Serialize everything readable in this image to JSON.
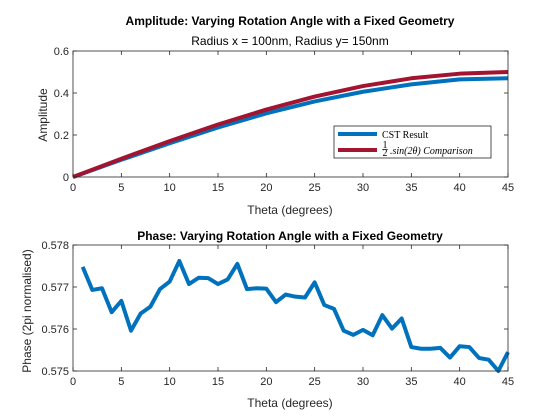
{
  "chart_data": [
    {
      "type": "line",
      "title": "Amplitude: Varying Rotation Angle with a Fixed Geometry",
      "subtitle": "Radius x = 100nm, Radius y= 150nm",
      "xlabel": "Theta (degrees)",
      "ylabel": "Amplitude",
      "xlim": [
        0,
        45
      ],
      "ylim": [
        0,
        0.6
      ],
      "xticks": [
        0,
        5,
        10,
        15,
        20,
        25,
        30,
        35,
        40,
        45
      ],
      "xtick_labels": [
        "0",
        "5",
        "10",
        "15",
        "20",
        "25",
        "30",
        "35",
        "40",
        "45"
      ],
      "yticks": [
        0,
        0.2,
        0.4,
        0.6
      ],
      "ytick_labels": [
        "0",
        "0.2",
        "0.4",
        "0.6"
      ],
      "grid": false,
      "legend_position": "right",
      "series": [
        {
          "name": "CST Result",
          "color": "#0072BD",
          "x": [
            0,
            5,
            10,
            15,
            20,
            25,
            30,
            35,
            40,
            45
          ],
          "y": [
            0,
            0.082,
            0.161,
            0.236,
            0.303,
            0.36,
            0.406,
            0.441,
            0.465,
            0.47
          ]
        },
        {
          "name": "½·sin(2θ) Comparison",
          "legend_parts": {
            "frac_num": "1",
            "frac_den": "2",
            "expr": ".sin(2θ) Comparison"
          },
          "color": "#A2142F",
          "x": [
            0,
            5,
            10,
            15,
            20,
            25,
            30,
            35,
            40,
            45
          ],
          "y": [
            0,
            0.087,
            0.171,
            0.25,
            0.321,
            0.383,
            0.433,
            0.47,
            0.492,
            0.5
          ]
        }
      ]
    },
    {
      "type": "line",
      "title": "Phase: Varying Rotation Angle with a Fixed Geometry",
      "xlabel": "Theta (degrees)",
      "ylabel": "Phase (2pi normalised)",
      "xlim": [
        0,
        45
      ],
      "ylim": [
        0.575,
        0.578
      ],
      "xticks": [
        0,
        5,
        10,
        15,
        20,
        25,
        30,
        35,
        40,
        45
      ],
      "xtick_labels": [
        "0",
        "5",
        "10",
        "15",
        "20",
        "25",
        "30",
        "35",
        "40",
        "45"
      ],
      "yticks": [
        0.575,
        0.576,
        0.577,
        0.578
      ],
      "ytick_labels": [
        "0.575",
        "0.576",
        "0.577",
        "0.578"
      ],
      "grid": false,
      "series": [
        {
          "color": "#0072BD",
          "x": [
            1,
            2,
            3,
            4,
            5,
            6,
            7,
            8,
            9,
            10,
            11,
            12,
            13,
            14,
            15,
            16,
            17,
            18,
            19,
            20,
            21,
            22,
            23,
            24,
            25,
            26,
            27,
            28,
            29,
            30,
            31,
            32,
            33,
            34,
            35,
            36,
            37,
            38,
            39,
            40,
            41,
            42,
            43,
            44,
            45
          ],
          "y": [
            0.57748,
            0.57693,
            0.57697,
            0.5764,
            0.57667,
            0.57596,
            0.57637,
            0.57653,
            0.57695,
            0.57713,
            0.57762,
            0.57707,
            0.57722,
            0.57721,
            0.57707,
            0.57718,
            0.57755,
            0.57695,
            0.57697,
            0.57696,
            0.57664,
            0.57682,
            0.57677,
            0.57675,
            0.57711,
            0.57657,
            0.57648,
            0.57596,
            0.57586,
            0.57598,
            0.57585,
            0.57633,
            0.57601,
            0.57625,
            0.57557,
            0.57553,
            0.57553,
            0.57555,
            0.57532,
            0.57559,
            0.57557,
            0.57531,
            0.57527,
            0.575,
            0.57545
          ]
        }
      ]
    }
  ]
}
